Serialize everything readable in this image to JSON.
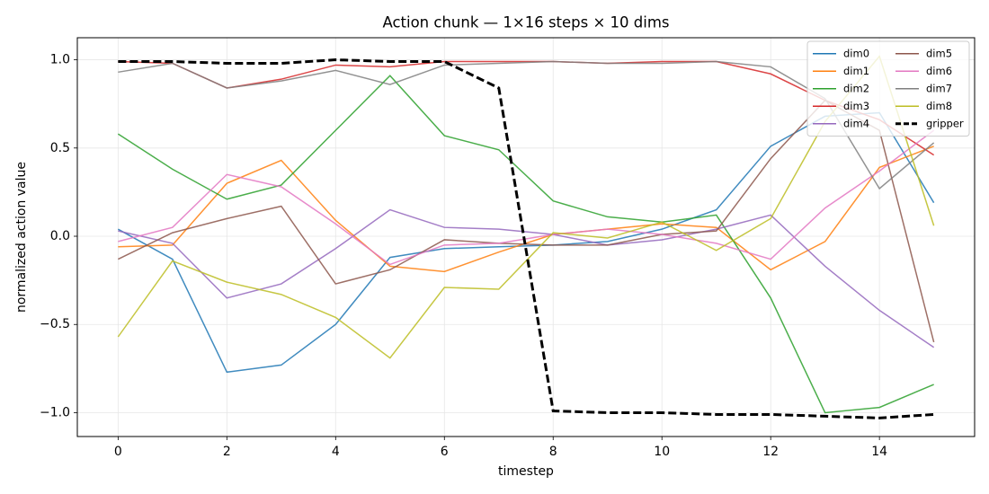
{
  "chart_data": {
    "type": "line",
    "title": "Action chunk — 1×16 steps × 10 dims",
    "x_label": "timestep",
    "y_label": "normalized action value",
    "x": [
      0,
      1,
      2,
      3,
      4,
      5,
      6,
      7,
      8,
      9,
      10,
      11,
      12,
      13,
      14,
      15
    ],
    "series": [
      {
        "name": "dim0",
        "color": "#1f77b4",
        "values": [
          0.04,
          -0.13,
          -0.77,
          -0.73,
          -0.5,
          -0.12,
          -0.07,
          -0.06,
          -0.05,
          -0.03,
          0.04,
          0.15,
          0.51,
          0.68,
          0.7,
          0.19
        ]
      },
      {
        "name": "dim1",
        "color": "#ff7f0e",
        "values": [
          -0.06,
          -0.05,
          0.3,
          0.43,
          0.09,
          -0.17,
          -0.2,
          -0.09,
          0.01,
          0.04,
          0.07,
          0.05,
          -0.19,
          -0.03,
          0.39,
          0.51
        ]
      },
      {
        "name": "dim2",
        "color": "#2ca02c",
        "values": [
          0.58,
          0.38,
          0.21,
          0.29,
          0.6,
          0.91,
          0.57,
          0.49,
          0.2,
          0.11,
          0.08,
          0.12,
          -0.35,
          -1.0,
          -0.97,
          -0.84
        ]
      },
      {
        "name": "dim3",
        "color": "#d62728",
        "values": [
          0.99,
          0.98,
          0.84,
          0.89,
          0.97,
          0.96,
          0.99,
          0.99,
          0.99,
          0.98,
          0.99,
          0.99,
          0.92,
          0.77,
          0.66,
          0.46
        ]
      },
      {
        "name": "dim4",
        "color": "#9467bd",
        "values": [
          0.03,
          -0.04,
          -0.35,
          -0.27,
          -0.07,
          0.15,
          0.05,
          0.04,
          0.01,
          -0.05,
          -0.02,
          0.04,
          0.12,
          -0.17,
          -0.42,
          -0.63
        ]
      },
      {
        "name": "dim5",
        "color": "#8c564b",
        "values": [
          -0.13,
          0.02,
          0.1,
          0.17,
          -0.27,
          -0.19,
          -0.02,
          -0.04,
          -0.05,
          -0.05,
          0.01,
          0.03,
          0.44,
          0.77,
          0.6,
          -0.6
        ]
      },
      {
        "name": "dim6",
        "color": "#e377c2",
        "values": [
          -0.03,
          0.05,
          0.35,
          0.28,
          0.07,
          -0.16,
          -0.05,
          -0.04,
          0.01,
          0.04,
          0.01,
          -0.04,
          -0.13,
          0.16,
          0.37,
          0.6
        ]
      },
      {
        "name": "dim7",
        "color": "#7f7f7f",
        "values": [
          0.93,
          0.98,
          0.84,
          0.88,
          0.94,
          0.86,
          0.97,
          0.98,
          0.99,
          0.98,
          0.98,
          0.99,
          0.96,
          0.78,
          0.27,
          0.53
        ]
      },
      {
        "name": "dim8",
        "color": "#bcbd22",
        "values": [
          -0.57,
          -0.14,
          -0.26,
          -0.33,
          -0.46,
          -0.69,
          -0.29,
          -0.3,
          0.02,
          -0.01,
          0.08,
          -0.08,
          0.1,
          0.65,
          1.02,
          0.06
        ]
      },
      {
        "name": "gripper",
        "color": "#000000",
        "linestyle": "dashed",
        "linewidth": 3,
        "values": [
          0.99,
          0.99,
          0.98,
          0.98,
          1.0,
          0.99,
          0.99,
          0.84,
          -0.99,
          -1.0,
          -1.0,
          -1.01,
          -1.01,
          -1.02,
          -1.03,
          -1.01
        ]
      }
    ],
    "xlim": [
      -0.75,
      15.75
    ],
    "xticks": [
      0,
      2,
      4,
      6,
      8,
      10,
      12,
      14
    ],
    "ylim": [
      -1.135,
      1.125
    ],
    "yticks": [
      {
        "value": -1,
        "label": "−1.0"
      },
      {
        "value": -0.5,
        "label": "−0.5"
      },
      {
        "value": 0,
        "label": "0.0"
      },
      {
        "value": 0.5,
        "label": "0.5"
      },
      {
        "value": 1,
        "label": "1.0"
      }
    ],
    "grid": true,
    "legend": "upper right",
    "legend_columns": 2
  }
}
